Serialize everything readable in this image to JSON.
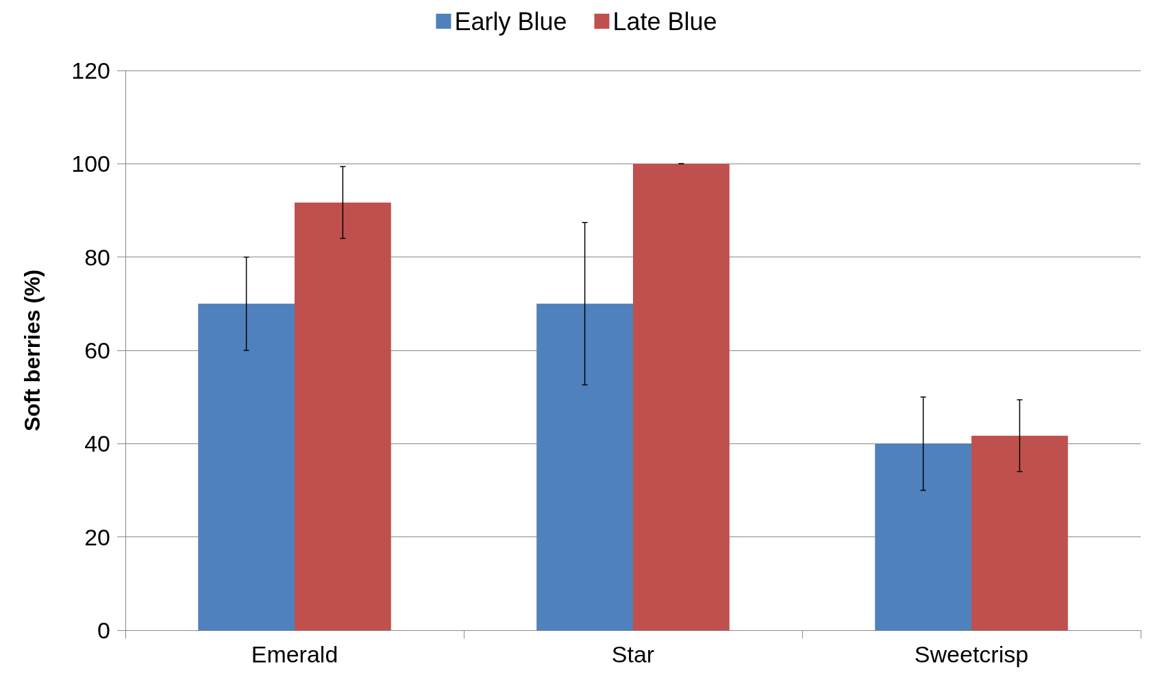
{
  "chart_data": {
    "type": "bar",
    "ylabel": "Soft berries (%)",
    "categories": [
      "Emerald",
      "Star",
      "Sweetcrisp"
    ],
    "series": [
      {
        "name": "Early Blue",
        "color": "#4f81bd",
        "values": [
          70,
          70,
          40
        ],
        "errors": [
          10,
          17.4,
          10
        ]
      },
      {
        "name": "Late Blue",
        "color": "#c0504d",
        "values": [
          91.7,
          100,
          41.7
        ],
        "errors": [
          7.7,
          0,
          7.7
        ]
      }
    ],
    "ylim": [
      0,
      120
    ],
    "yticks": [
      0,
      20,
      40,
      60,
      80,
      100,
      120
    ],
    "grid": "y",
    "legend": "top"
  }
}
